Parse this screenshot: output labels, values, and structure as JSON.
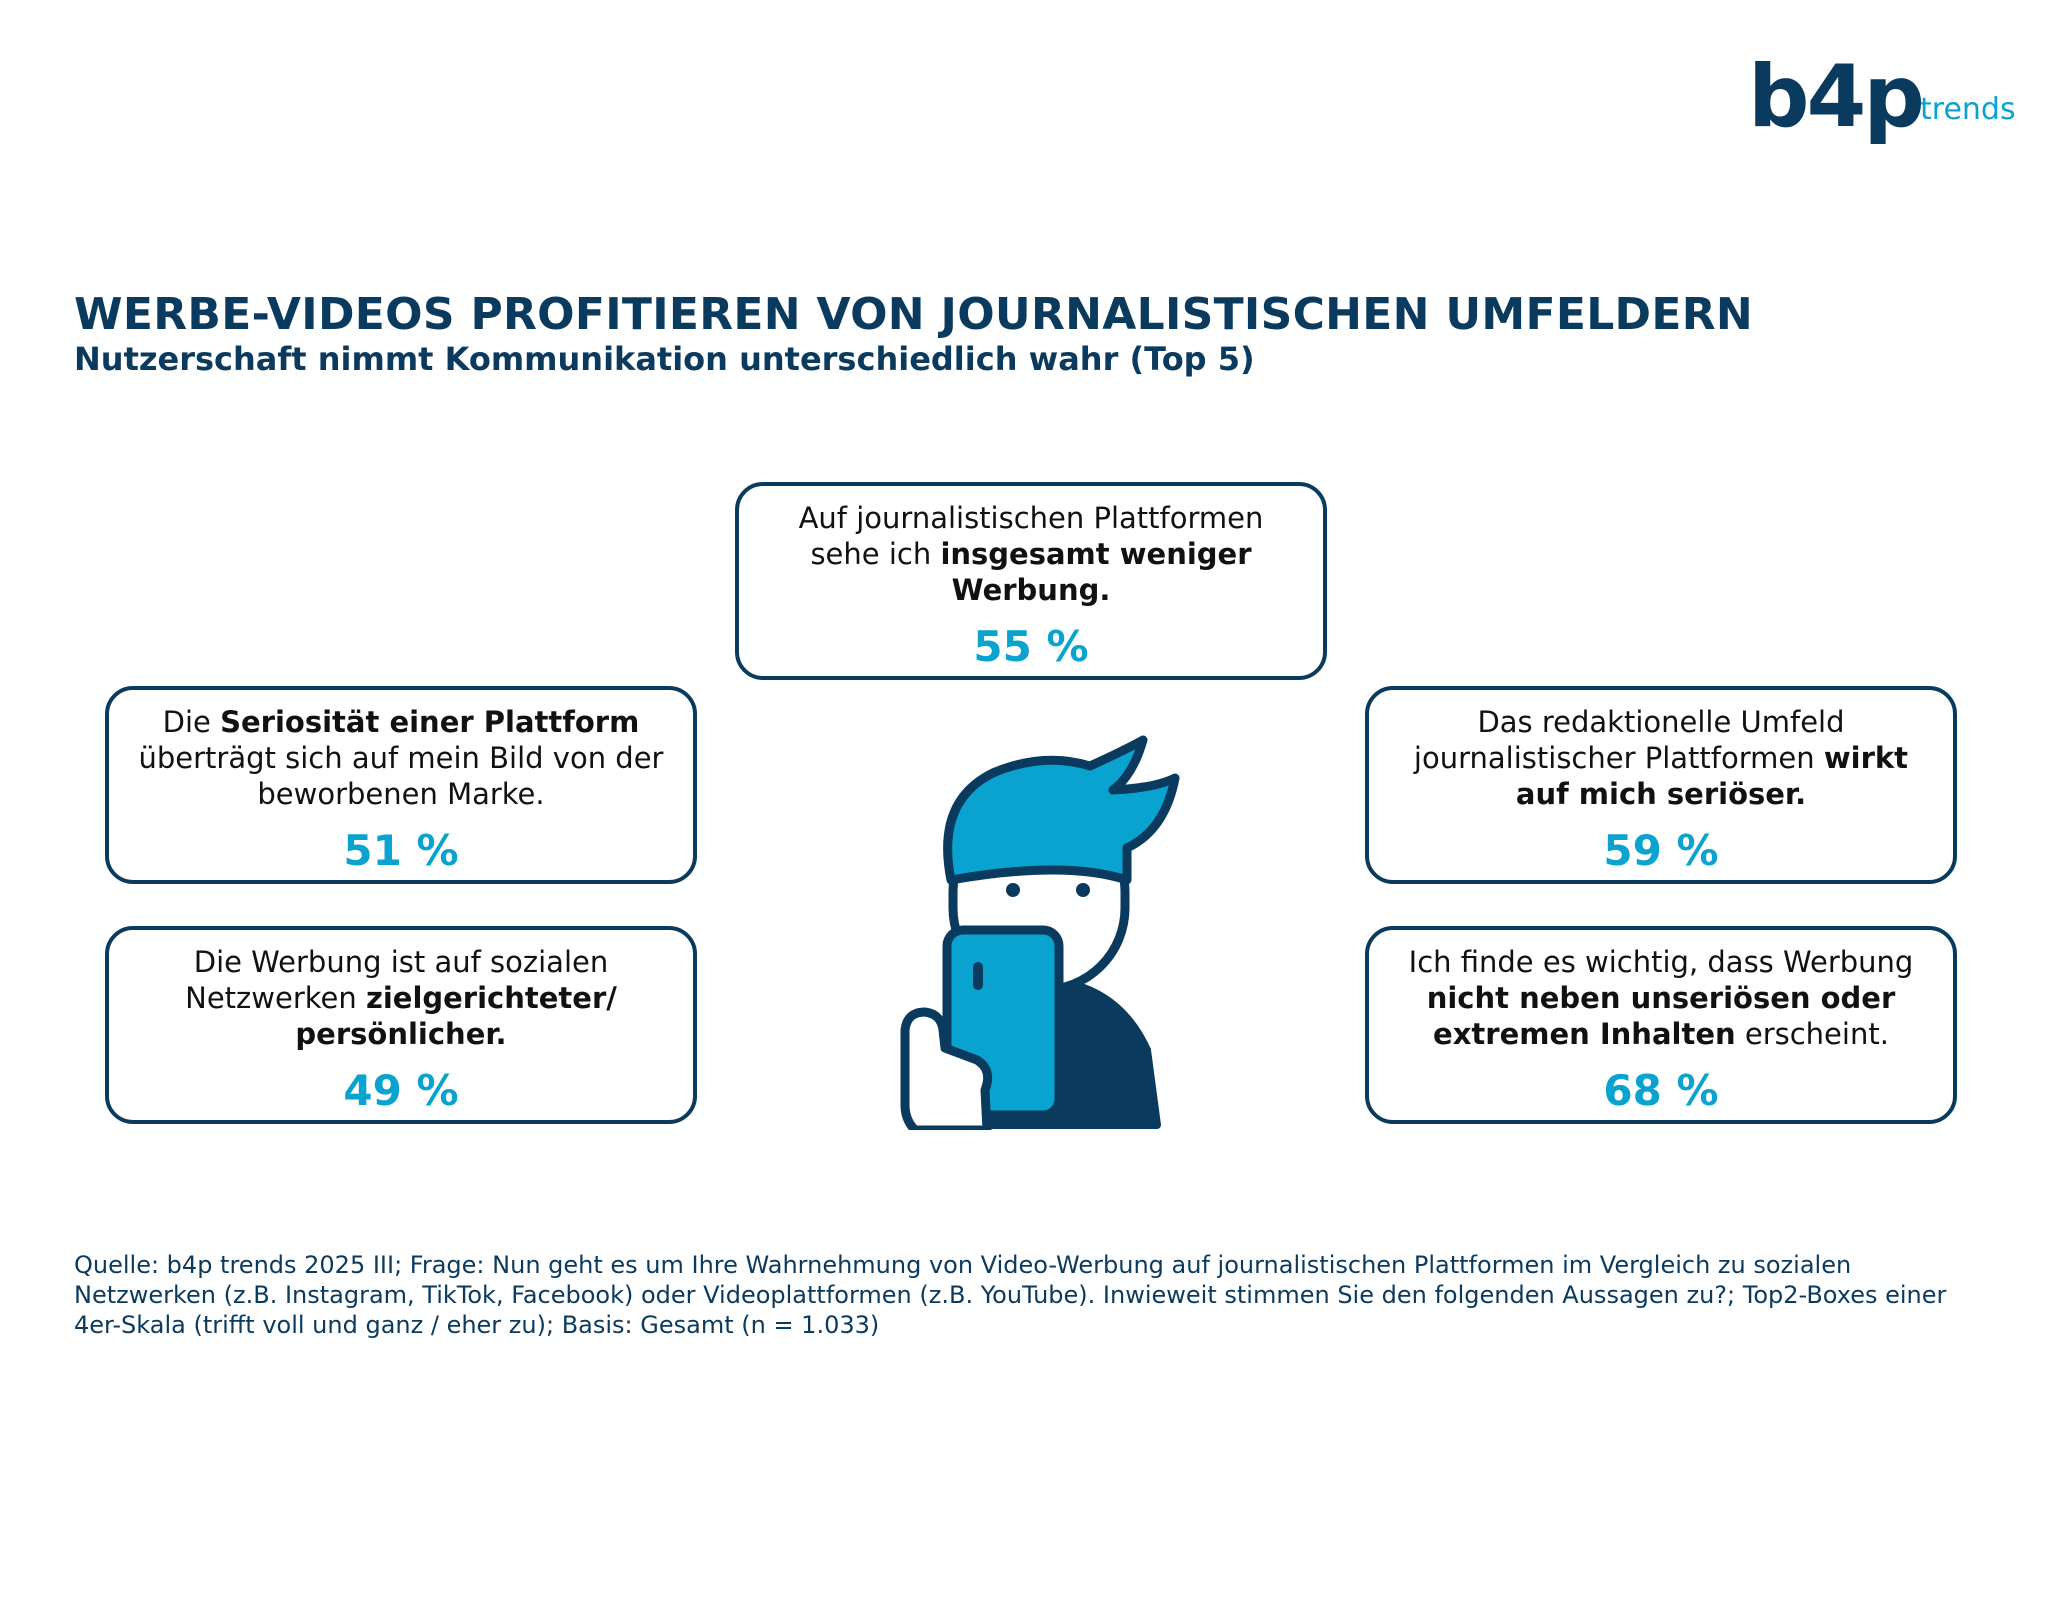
{
  "logo": {
    "brand": "b4p",
    "product": "trends"
  },
  "header": {
    "title": "WERBE-VIDEOS PROFITIEREN VON JOURNALISTISCHEN UMFELDERN",
    "subtitle": "Nutzerschaft nimmt Kommunikation unterschiedlich wahr (Top 5)"
  },
  "colors": {
    "dark_blue": "#0a3a5e",
    "accent_cyan": "#0aa3cf"
  },
  "chart_data": {
    "type": "table",
    "title": "WERBE-VIDEOS PROFITIEREN VON JOURNALISTISCHEN UMFELDERN",
    "subtitle": "Nutzerschaft nimmt Kommunikation unterschiedlich wahr (Top 5)",
    "unit": "%",
    "items": [
      {
        "segments": [
          {
            "text": "Auf journalistischen Plattformen sehe ich ",
            "bold": false
          },
          {
            "text": "insgesamt weniger Werbung.",
            "bold": true
          }
        ],
        "value": 55,
        "value_label": "55 %"
      },
      {
        "segments": [
          {
            "text": "Die ",
            "bold": false
          },
          {
            "text": "Seriosität einer Plattform",
            "bold": true
          },
          {
            "text": " überträgt sich auf mein Bild von der beworbenen Marke.",
            "bold": false
          }
        ],
        "value": 51,
        "value_label": "51 %"
      },
      {
        "segments": [
          {
            "text": "Das redaktionelle Umfeld journalistischer Plattformen ",
            "bold": false
          },
          {
            "text": "wirkt auf mich seriöser.",
            "bold": true
          }
        ],
        "value": 59,
        "value_label": "59 %"
      },
      {
        "segments": [
          {
            "text": "Die Werbung ist auf sozialen Netzwerken ",
            "bold": false
          },
          {
            "text": "zielgerichteter/ persönlicher.",
            "bold": true
          }
        ],
        "value": 49,
        "value_label": "49 %"
      },
      {
        "segments": [
          {
            "text": "Ich finde es wichtig, dass Werbung ",
            "bold": false
          },
          {
            "text": "nicht neben unseriösen oder extremen Inhalten",
            "bold": true
          },
          {
            "text": " erscheint.",
            "bold": false
          }
        ],
        "value": 68,
        "value_label": "68 %"
      }
    ]
  },
  "illustration": {
    "icon": "person-holding-smartphone-icon"
  },
  "footer": {
    "source": "Quelle: b4p trends 2025 III; Frage: Nun geht es um Ihre Wahrnehmung von Video-Werbung auf journalistischen Plattformen im Vergleich zu sozialen Netzwerken (z.B. Instagram, TikTok, Facebook) oder Videoplattformen (z.B. YouTube). Inwieweit stimmen Sie den folgenden Aussagen zu?; Top2-Boxes einer 4er-Skala (trifft voll und ganz / eher zu); Basis: Gesamt (n = 1.033)"
  }
}
